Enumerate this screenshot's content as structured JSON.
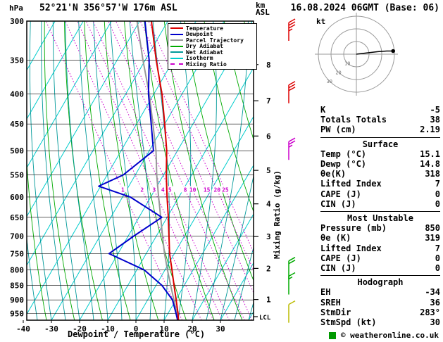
{
  "header": {
    "station_title": "52°21'N 356°57'W 176m ASL",
    "datetime_title": "16.08.2024 06GMT (Base: 06)",
    "pressure_unit_label": "hPa",
    "altitude_unit_line1": "km",
    "altitude_unit_line2": "ASL"
  },
  "legend": [
    {
      "label": "Temperature",
      "color": "#dd0000",
      "dotted": false
    },
    {
      "label": "Dewpoint",
      "color": "#0000cc",
      "dotted": false
    },
    {
      "label": "Parcel Trajectory",
      "color": "#999999",
      "dotted": false
    },
    {
      "label": "Dry Adiabat",
      "color": "#00aa00",
      "dotted": false
    },
    {
      "label": "Wet Adiabat",
      "color": "#009999",
      "dotted": false
    },
    {
      "label": "Isotherm",
      "color": "#00cccc",
      "dotted": false
    },
    {
      "label": "Mixing Ratio",
      "color": "#cc00cc",
      "dotted": true
    }
  ],
  "chart_data": {
    "type": "line",
    "title": "Skew-T log-P sounding",
    "x_axis": {
      "label": "Dewpoint / Temperature (°C)",
      "unit": "°C",
      "ticks": [
        -40,
        -30,
        -20,
        -10,
        0,
        10,
        20,
        30
      ]
    },
    "y_axis": {
      "unit": "hPa",
      "scale": "log",
      "range": [
        300,
        975
      ],
      "ticks": [
        300,
        350,
        400,
        450,
        500,
        550,
        600,
        650,
        700,
        750,
        800,
        850,
        900,
        950
      ]
    },
    "km_axis": {
      "ticks": [
        1,
        2,
        3,
        4,
        5,
        6,
        7,
        8
      ],
      "lcl_label": "LCL"
    },
    "mixing_axis_label": "Mixing Ratio (g/kg)",
    "series": [
      {
        "name": "Temperature",
        "color": "#dd0000",
        "pressure": [
          975,
          950,
          900,
          850,
          800,
          750,
          700,
          650,
          600,
          550,
          500,
          450,
          400,
          350,
          300
        ],
        "temp_c": [
          15.1,
          13.6,
          10.1,
          6.4,
          2.5,
          -1.7,
          -5.5,
          -9.6,
          -14.2,
          -19.0,
          -23.8,
          -30.0,
          -37.1,
          -46.1,
          -55.8
        ]
      },
      {
        "name": "Dewpoint",
        "color": "#0000cc",
        "pressure": [
          975,
          950,
          900,
          850,
          800,
          750,
          700,
          650,
          600,
          575,
          550,
          500,
          450,
          400,
          350,
          300
        ],
        "temp_c": [
          14.8,
          12.9,
          8.8,
          2.1,
          -7.3,
          -23.2,
          -18.0,
          -11.9,
          -27.3,
          -40.7,
          -34.3,
          -28.5,
          -34.8,
          -41.9,
          -48.6,
          -58.1
        ]
      },
      {
        "name": "Parcel Trajectory",
        "color": "#999999",
        "pressure": [
          975,
          950,
          900,
          850,
          800,
          750,
          700,
          650,
          600,
          550,
          500,
          450,
          400,
          350,
          300
        ],
        "temp_c": [
          15.1,
          13.2,
          9.3,
          5.2,
          0.9,
          -3.5,
          -7.8,
          -12.3,
          -17.2,
          -22.4,
          -27.6,
          -34.2,
          -41.6,
          -50.8,
          -60.9
        ]
      }
    ],
    "background_lines": {
      "isotherm": {
        "color": "#00cccc",
        "step_c": 10
      },
      "dry_adiabat": {
        "color": "#00aa00",
        "step_c": 10
      },
      "wet_adiabat": {
        "color": "#009999",
        "step_c": 5
      },
      "mixing_ratio": {
        "color": "#cc00cc",
        "unit": "g/kg",
        "labels": [
          1,
          2,
          3,
          4,
          5,
          8,
          10,
          15,
          20,
          25
        ]
      }
    },
    "wind_barbs": [
      {
        "pressure": 300,
        "speed_kt": 35,
        "color": "#dd0000"
      },
      {
        "pressure": 400,
        "speed_kt": 30,
        "color": "#dd0000"
      },
      {
        "pressure": 500,
        "speed_kt": 25,
        "color": "#cc00cc"
      },
      {
        "pressure": 800,
        "speed_kt": 20,
        "color": "#00aa00"
      },
      {
        "pressure": 850,
        "speed_kt": 15,
        "color": "#00aa00"
      },
      {
        "pressure": 950,
        "speed_kt": 10,
        "color": "#bbbb00"
      }
    ]
  },
  "hodograph": {
    "unit_label": "kt",
    "ring_radii_kt": [
      10,
      20,
      30
    ],
    "ring_labels": [
      "10",
      "20",
      "30"
    ],
    "trace_uv_kt": [
      [
        0,
        0
      ],
      [
        8,
        -1
      ],
      [
        17,
        -2
      ],
      [
        24,
        -2.5
      ],
      [
        29,
        -2.5
      ]
    ],
    "marker_uv_kt": [
      29,
      -2.5
    ]
  },
  "stats": {
    "top_rows": [
      {
        "label": "K",
        "value": "-5"
      },
      {
        "label": "Totals Totals",
        "value": "38"
      },
      {
        "label": "PW (cm)",
        "value": "2.19"
      }
    ],
    "sections": [
      {
        "title": "Surface",
        "rows": [
          {
            "label": "Temp (°C)",
            "value": "15.1"
          },
          {
            "label": "Dewp (°C)",
            "value": "14.8"
          },
          {
            "label": "θe(K)",
            "value": "318"
          },
          {
            "label": "Lifted Index",
            "value": "7"
          },
          {
            "label": "CAPE (J)",
            "value": "0"
          },
          {
            "label": "CIN (J)",
            "value": "0"
          }
        ]
      },
      {
        "title": "Most Unstable",
        "rows": [
          {
            "label": "Pressure (mb)",
            "value": "850"
          },
          {
            "label": "θe (K)",
            "value": "319"
          },
          {
            "label": "Lifted Index",
            "value": "7"
          },
          {
            "label": "CAPE (J)",
            "value": "0"
          },
          {
            "label": "CIN (J)",
            "value": "0"
          }
        ]
      },
      {
        "title": "Hodograph",
        "rows": [
          {
            "label": "EH",
            "value": "-34"
          },
          {
            "label": "SREH",
            "value": "36"
          },
          {
            "label": "StmDir",
            "value": "283°"
          },
          {
            "label": "StmSpd (kt)",
            "value": "30"
          }
        ]
      }
    ]
  },
  "footer": {
    "copyright": "© weatheronline.co.uk"
  }
}
